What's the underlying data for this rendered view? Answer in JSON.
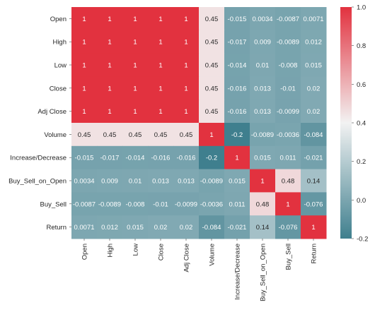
{
  "chart_data": {
    "type": "heatmap",
    "title": "",
    "xlabel": "",
    "ylabel": "",
    "rows": [
      "Open",
      "High",
      "Low",
      "Close",
      "Adj Close",
      "Volume",
      "Increase/Decrease",
      "Buy_Sell_on_Open",
      "Buy_Sell",
      "Return"
    ],
    "columns": [
      "Open",
      "High",
      "Low",
      "Close",
      "Adj Close",
      "Volume",
      "Increase/Decrease",
      "Buy_Sell_on_Open",
      "Buy_Sell",
      "Return"
    ],
    "values": [
      [
        1,
        1,
        1,
        1,
        1,
        0.45,
        -0.015,
        0.0034,
        -0.0087,
        0.0071
      ],
      [
        1,
        1,
        1,
        1,
        1,
        0.45,
        -0.017,
        0.009,
        -0.0089,
        0.012
      ],
      [
        1,
        1,
        1,
        1,
        1,
        0.45,
        -0.014,
        0.01,
        -0.008,
        0.015
      ],
      [
        1,
        1,
        1,
        1,
        1,
        0.45,
        -0.016,
        0.013,
        -0.01,
        0.02
      ],
      [
        1,
        1,
        1,
        1,
        1,
        0.45,
        -0.016,
        0.013,
        -0.0099,
        0.02
      ],
      [
        0.45,
        0.45,
        0.45,
        0.45,
        0.45,
        1,
        -0.2,
        -0.0089,
        -0.0036,
        -0.084
      ],
      [
        -0.015,
        -0.017,
        -0.014,
        -0.016,
        -0.016,
        -0.2,
        1,
        0.015,
        0.011,
        -0.021
      ],
      [
        0.0034,
        0.009,
        0.01,
        0.013,
        0.013,
        -0.0089,
        0.015,
        1,
        0.48,
        0.14
      ],
      [
        -0.0087,
        -0.0089,
        -0.008,
        -0.01,
        -0.0099,
        -0.0036,
        0.011,
        0.48,
        1,
        -0.076
      ],
      [
        0.0071,
        0.012,
        0.015,
        0.02,
        0.02,
        -0.084,
        -0.021,
        0.14,
        -0.076,
        1
      ]
    ],
    "colorbar": {
      "min": -0.2,
      "max": 1.0,
      "ticks": [
        "1.0",
        "0.8",
        "0.6",
        "0.4",
        "0.2",
        "0.0",
        "-0.2"
      ],
      "tick_values": [
        1.0,
        0.8,
        0.6,
        0.4,
        0.2,
        0.0,
        -0.2
      ],
      "colors": {
        "low": "#3f7f8e",
        "mid": "#f2f2f2",
        "high": "#e2323f"
      }
    },
    "grid": false,
    "legend": "colorbar-right"
  }
}
